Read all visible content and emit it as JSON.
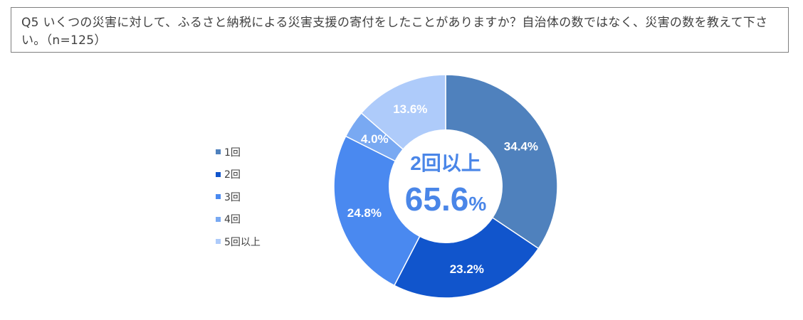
{
  "question": {
    "text": "Q5 いくつの災害に対して、ふるさと納税による災害支援の寄付をしたことがありますか？自治体の数ではなく、災害の数を教えて下さい。（n=125）"
  },
  "center_label": {
    "line1": "2回以上",
    "value": "65.6",
    "unit": "%"
  },
  "colors": {
    "text": "#404040",
    "center_text": "#4a86e8",
    "label_text": "#ffffff"
  },
  "chart_data": {
    "type": "pie",
    "style": "donut",
    "categories": [
      "1回",
      "2回",
      "3回",
      "4回",
      "5回以上"
    ],
    "values": [
      34.4,
      23.2,
      24.8,
      4.0,
      13.6
    ],
    "labels": [
      "34.4%",
      "23.2%",
      "24.8%",
      "4.0%",
      "13.6%"
    ],
    "colors": [
      "#4f81bd",
      "#1155cc",
      "#4a89f0",
      "#79a9f2",
      "#aecbfa"
    ],
    "legend_position": "left",
    "start": "top",
    "direction": "clockwise"
  }
}
